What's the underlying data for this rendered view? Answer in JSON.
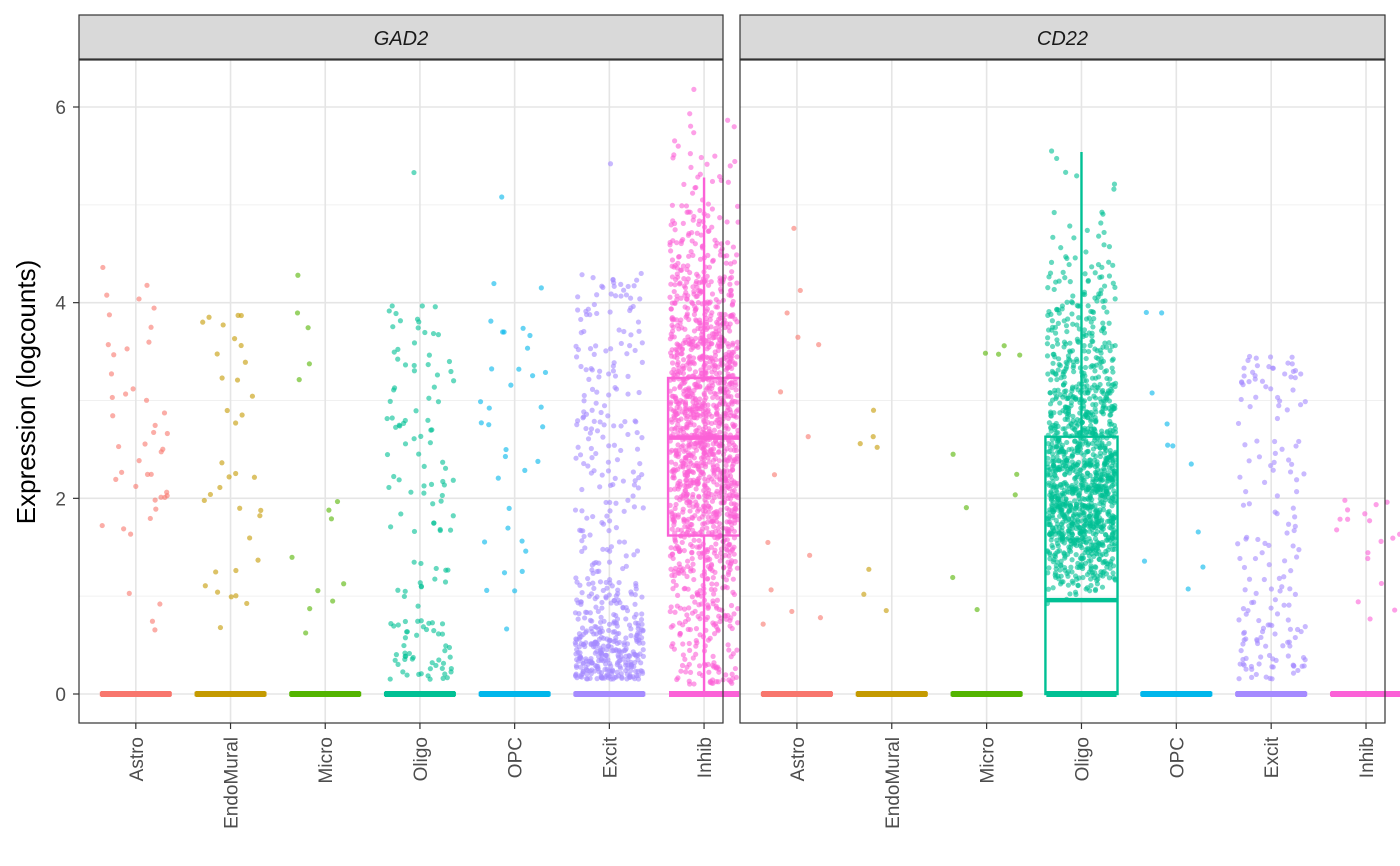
{
  "chart_data": {
    "type": "box-jitter",
    "ylabel": "Expression (logcounts)",
    "categories": [
      "Astro",
      "EndoMural",
      "Micro",
      "Oligo",
      "OPC",
      "Excit",
      "Inhib"
    ],
    "ylim": [
      -0.3,
      6.5
    ],
    "yticks": [
      0,
      2,
      4,
      6
    ],
    "grid": true,
    "colors": {
      "Astro": "#F8766D",
      "EndoMural": "#C49A00",
      "Micro": "#53B400",
      "Oligo": "#00C094",
      "OPC": "#00B6EB",
      "Excit": "#A58AFF",
      "Inhib": "#FB61D7"
    },
    "panels": [
      {
        "gene": "GAD2",
        "groups": [
          {
            "cell_type": "Astro",
            "box": {
              "q1": 0,
              "median": 0,
              "q3": 0,
              "whisker_low": 0,
              "whisker_high": 0
            },
            "nonzero_points": 45,
            "max": 4.36
          },
          {
            "cell_type": "EndoMural",
            "box": {
              "q1": 0,
              "median": 0,
              "q3": 0,
              "whisker_low": 0,
              "whisker_high": 0
            },
            "nonzero_points": 35,
            "max": 3.87
          },
          {
            "cell_type": "Micro",
            "box": {
              "q1": 0,
              "median": 0,
              "q3": 0,
              "whisker_low": 0,
              "whisker_high": 0
            },
            "nonzero_points": 14,
            "max": 4.28
          },
          {
            "cell_type": "Oligo",
            "box": {
              "q1": 0,
              "median": 0,
              "q3": 0,
              "whisker_low": 0,
              "whisker_high": 0
            },
            "nonzero_points": 140,
            "max": 5.33
          },
          {
            "cell_type": "OPC",
            "box": {
              "q1": 0,
              "median": 0,
              "q3": 0,
              "whisker_low": 0,
              "whisker_high": 0
            },
            "nonzero_points": 35,
            "max": 5.08
          },
          {
            "cell_type": "Excit",
            "box": {
              "q1": 0,
              "median": 0,
              "q3": 0,
              "whisker_low": 0,
              "whisker_high": 0
            },
            "nonzero_points": 520,
            "max": 5.42
          },
          {
            "cell_type": "Inhib",
            "box": {
              "q1": 1.62,
              "median": 2.62,
              "q3": 3.23,
              "whisker_low": 0,
              "whisker_high": 5.28
            },
            "nonzero_points": 1500,
            "max": 6.18
          }
        ]
      },
      {
        "gene": "CD22",
        "groups": [
          {
            "cell_type": "Astro",
            "box": {
              "q1": 0,
              "median": 0,
              "q3": 0,
              "whisker_low": 0,
              "whisker_high": 0
            },
            "nonzero_points": 14,
            "max": 4.76
          },
          {
            "cell_type": "EndoMural",
            "box": {
              "q1": 0,
              "median": 0,
              "q3": 0,
              "whisker_low": 0,
              "whisker_high": 0
            },
            "nonzero_points": 7,
            "max": 2.9
          },
          {
            "cell_type": "Micro",
            "box": {
              "q1": 0,
              "median": 0,
              "q3": 0,
              "whisker_low": 0,
              "whisker_high": 0
            },
            "nonzero_points": 10,
            "max": 3.56
          },
          {
            "cell_type": "Oligo",
            "box": {
              "q1": 0,
              "median": 0.96,
              "q3": 2.63,
              "whisker_low": 0,
              "whisker_high": 5.54
            },
            "nonzero_points": 1300,
            "max": 5.55
          },
          {
            "cell_type": "OPC",
            "box": {
              "q1": 0,
              "median": 0,
              "q3": 0,
              "whisker_low": 0,
              "whisker_high": 0
            },
            "nonzero_points": 11,
            "max": 3.9
          },
          {
            "cell_type": "Excit",
            "box": {
              "q1": 0,
              "median": 0,
              "q3": 0,
              "whisker_low": 0,
              "whisker_high": 0
            },
            "nonzero_points": 170,
            "max": 3.45
          },
          {
            "cell_type": "Inhib",
            "box": {
              "q1": 0,
              "median": 0,
              "q3": 0,
              "whisker_low": 0,
              "whisker_high": 0
            },
            "nonzero_points": 18,
            "max": 1.98
          }
        ]
      }
    ]
  }
}
